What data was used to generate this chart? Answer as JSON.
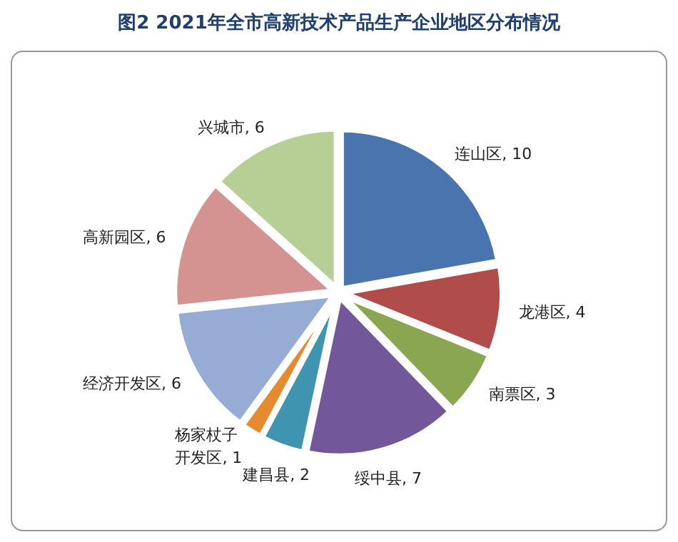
{
  "chart_data": {
    "type": "pie",
    "title": "图2  2021年全市高新技术产品生产企业地区分布情况",
    "categories": [
      "连山区",
      "龙港区",
      "南票区",
      "绥中县",
      "建昌县",
      "杨家杖子开发区",
      "经济开发区",
      "高新园区",
      "兴城市"
    ],
    "values": [
      10,
      4,
      3,
      7,
      2,
      1,
      6,
      6,
      6
    ],
    "colors": [
      "#4a74ad",
      "#b04c49",
      "#8ba650",
      "#72589a",
      "#3f95b0",
      "#e58a2f",
      "#97acd5",
      "#d49391",
      "#b6cf94"
    ],
    "value_labels": [
      ", 10",
      ", 4",
      ", 3",
      ", 7",
      ", 2",
      ", 1",
      ", 6",
      ", 6",
      ", 6"
    ]
  }
}
